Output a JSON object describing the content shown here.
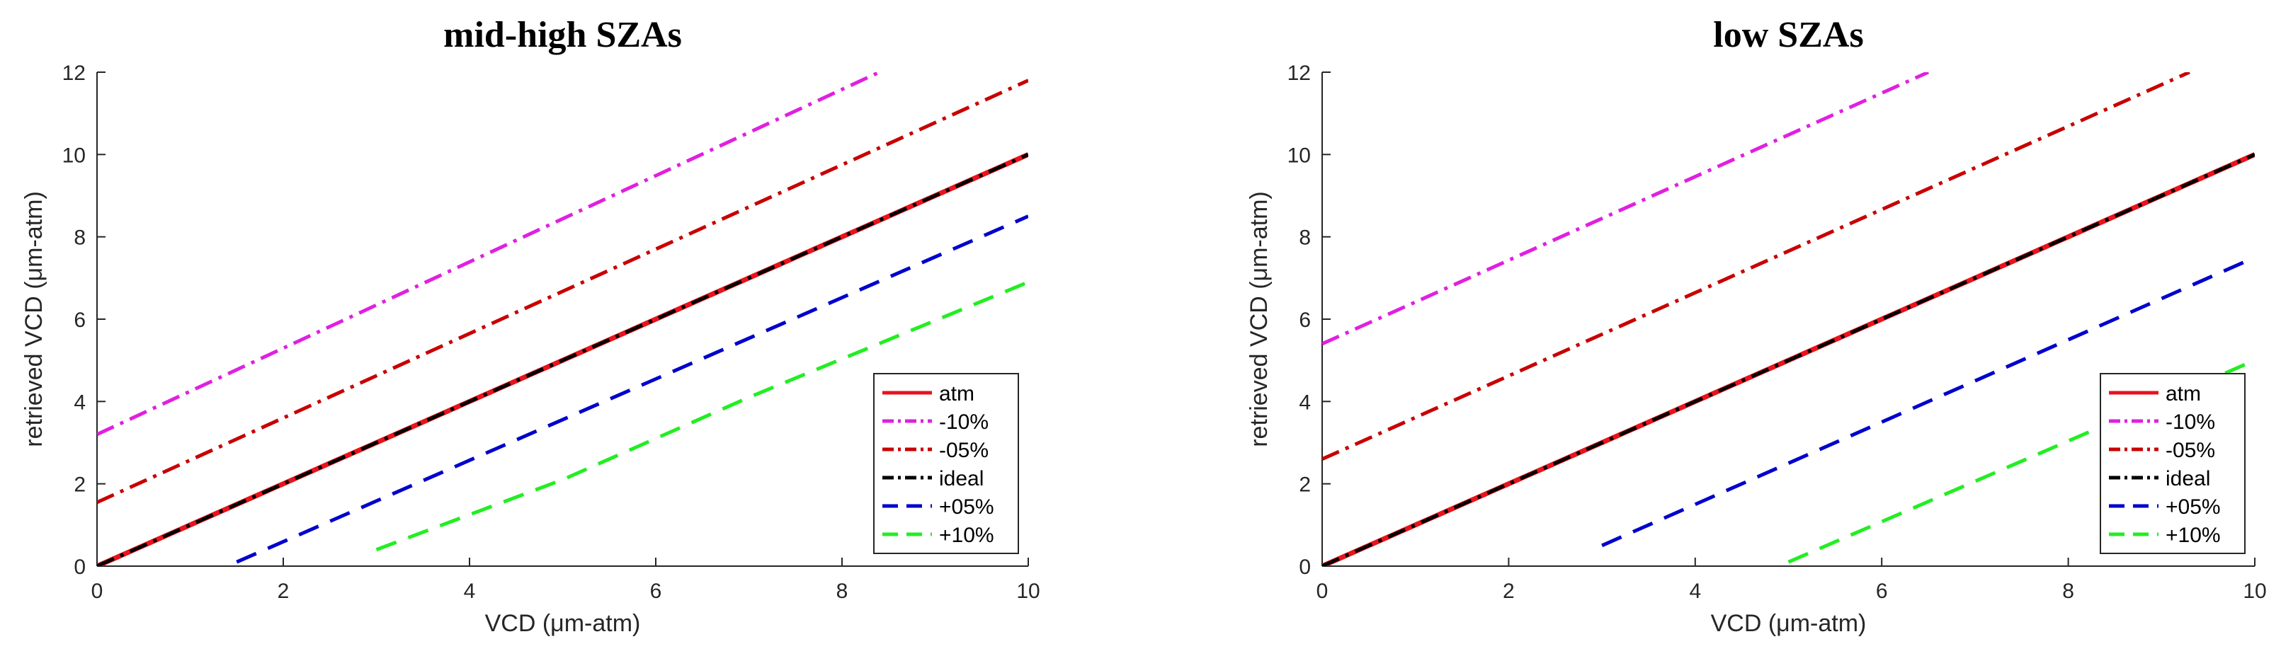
{
  "figure": {
    "colors": {
      "axis": "#262626",
      "background": "#ffffff"
    }
  },
  "chart_data": [
    {
      "type": "line",
      "title": "mid-high SZAs",
      "xlabel": "VCD (μm-atm)",
      "ylabel": "retrieved VCD (μm-atm)",
      "xlim": [
        0,
        10
      ],
      "ylim": [
        0,
        12
      ],
      "xticks": [
        0,
        2,
        4,
        6,
        8,
        10
      ],
      "yticks": [
        0,
        2,
        4,
        6,
        8,
        10,
        12
      ],
      "grid": false,
      "legend_position": "bottom-right",
      "series": [
        {
          "name": "atm",
          "style": "solid",
          "color": "#e8141c",
          "x": [
            0,
            10
          ],
          "y": [
            0,
            10
          ]
        },
        {
          "name": "-10%",
          "style": "dashdot",
          "color": "#e020e0",
          "x": [
            0,
            8.4
          ],
          "y": [
            3.2,
            12
          ]
        },
        {
          "name": "-05%",
          "style": "dashdot",
          "color": "#c80000",
          "x": [
            0,
            10
          ],
          "y": [
            1.55,
            11.8
          ]
        },
        {
          "name": "ideal",
          "style": "dashdot",
          "color": "#000000",
          "x": [
            0,
            10
          ],
          "y": [
            0,
            10
          ]
        },
        {
          "name": "+05%",
          "style": "dashed",
          "color": "#0000cc",
          "x": [
            1.5,
            10
          ],
          "y": [
            0.1,
            8.5
          ]
        },
        {
          "name": "+10%",
          "style": "dashed",
          "color": "#22ee22",
          "x": [
            3.0,
            5.0,
            7.0,
            10
          ],
          "y": [
            0.4,
            2.1,
            4.1,
            6.9
          ]
        }
      ]
    },
    {
      "type": "line",
      "title": "low SZAs",
      "xlabel": "VCD (μm-atm)",
      "ylabel": "retrieved VCD (μm-atm)",
      "xlim": [
        0,
        10
      ],
      "ylim": [
        0,
        12
      ],
      "xticks": [
        0,
        2,
        4,
        6,
        8,
        10
      ],
      "yticks": [
        0,
        2,
        4,
        6,
        8,
        10,
        12
      ],
      "grid": false,
      "legend_position": "bottom-right",
      "series": [
        {
          "name": "atm",
          "style": "solid",
          "color": "#e8141c",
          "x": [
            0,
            10
          ],
          "y": [
            0,
            10
          ]
        },
        {
          "name": "-10%",
          "style": "dashdot",
          "color": "#e020e0",
          "x": [
            0,
            6.5
          ],
          "y": [
            5.4,
            12
          ]
        },
        {
          "name": "-05%",
          "style": "dashdot",
          "color": "#c80000",
          "x": [
            0,
            9.3
          ],
          "y": [
            2.6,
            12
          ]
        },
        {
          "name": "ideal",
          "style": "dashdot",
          "color": "#000000",
          "x": [
            0,
            10
          ],
          "y": [
            0,
            10
          ]
        },
        {
          "name": "+05%",
          "style": "dashed",
          "color": "#0000cc",
          "x": [
            3.0,
            9.9
          ],
          "y": [
            0.5,
            7.4
          ]
        },
        {
          "name": "+10%",
          "style": "dashed",
          "color": "#22ee22",
          "x": [
            5.0,
            10
          ],
          "y": [
            0.1,
            5.0
          ]
        }
      ]
    }
  ]
}
